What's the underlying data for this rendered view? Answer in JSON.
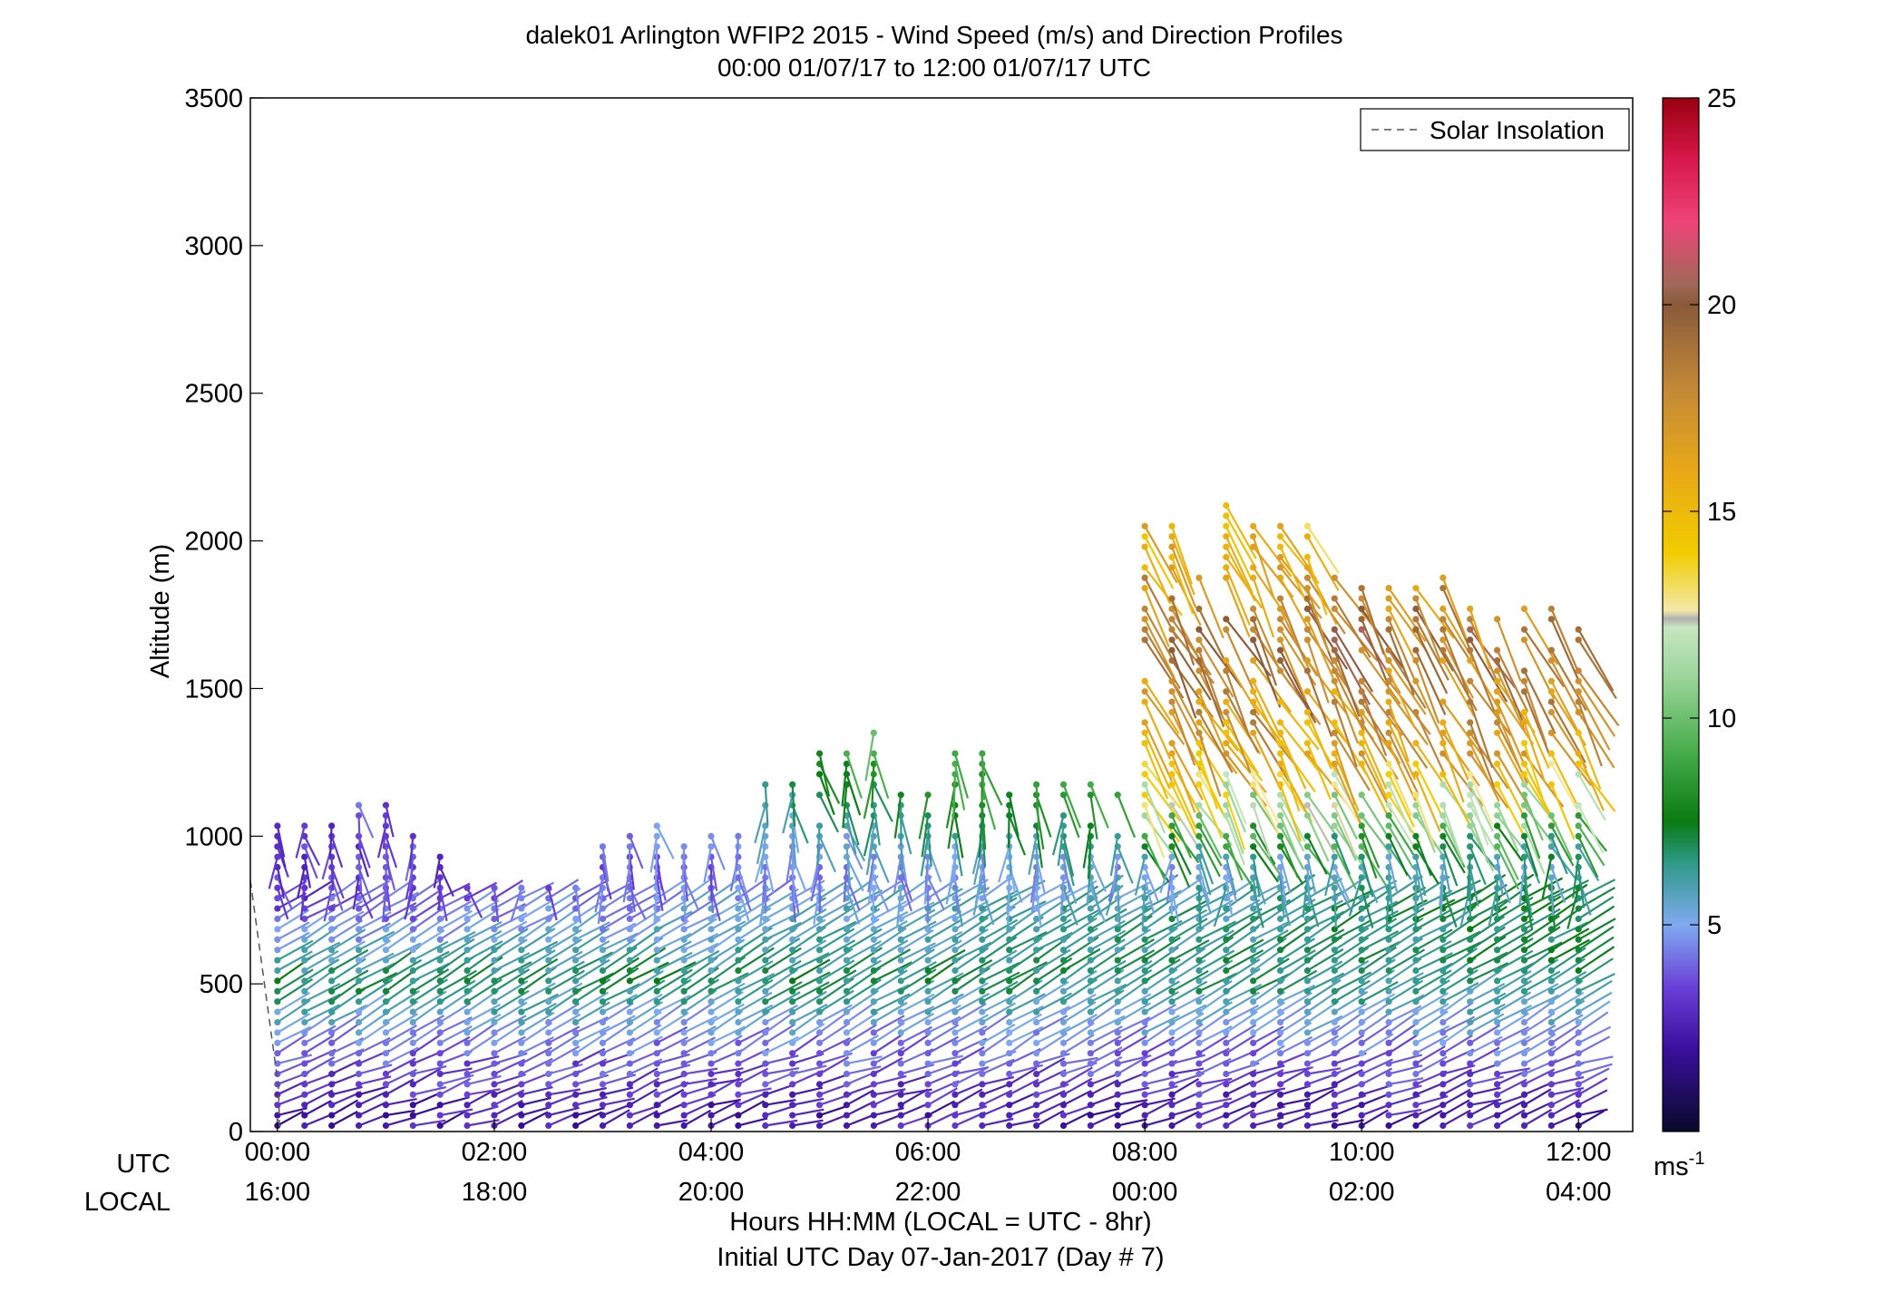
{
  "chart_data": {
    "type": "scatter",
    "title": "dalek01 Arlington WFIP2 2015 - Wind Speed (m/s) and Direction Profiles",
    "subtitle": "00:00 01/07/17 to 12:00 01/07/17  UTC",
    "ylabel": "Altitude (m)",
    "xlabel": "Hours HH:MM  (LOCAL = UTC - 8hr)",
    "xlabel2": "Initial UTC Day 07-Jan-2017 (Day # 7)",
    "ylim": [
      0,
      3500
    ],
    "xlim_hours": [
      -0.25,
      12.5
    ],
    "y_ticks": [
      "0",
      "500",
      "1000",
      "1500",
      "2000",
      "2500",
      "3000",
      "3500"
    ],
    "x_tick_hours": [
      0,
      2,
      4,
      6,
      8,
      10,
      12
    ],
    "utc_row_label": "UTC",
    "local_row_label": "LOCAL",
    "utc_ticks": [
      "00:00",
      "02:00",
      "04:00",
      "06:00",
      "08:00",
      "10:00",
      "12:00"
    ],
    "local_ticks": [
      "16:00",
      "18:00",
      "20:00",
      "22:00",
      "00:00",
      "02:00",
      "04:00"
    ],
    "legend": {
      "entry": "Solar Insolation",
      "style": "dashed gray",
      "position": "top-right"
    },
    "colorbar": {
      "label": "ms",
      "label_sup": "-1",
      "ticks": [
        "5",
        "10",
        "15",
        "20",
        "25"
      ],
      "tick_values": [
        5,
        10,
        15,
        20,
        25
      ],
      "range": [
        0,
        25
      ],
      "colormap": [
        {
          "v": 0,
          "c": "#0a0a2a"
        },
        {
          "v": 2,
          "c": "#3a0f9e"
        },
        {
          "v": 3.5,
          "c": "#6a40d8"
        },
        {
          "v": 5,
          "c": "#7faaf0"
        },
        {
          "v": 6.5,
          "c": "#2e9a88"
        },
        {
          "v": 7.5,
          "c": "#0a7a12"
        },
        {
          "v": 9,
          "c": "#3fa844"
        },
        {
          "v": 11,
          "c": "#9bd59a"
        },
        {
          "v": 12.2,
          "c": "#c8e6c0"
        },
        {
          "v": 12.4,
          "c": "#b0b0b0"
        },
        {
          "v": 12.6,
          "c": "#f3e9a8"
        },
        {
          "v": 14,
          "c": "#f2cc00"
        },
        {
          "v": 16,
          "c": "#e8a818"
        },
        {
          "v": 18,
          "c": "#c28838"
        },
        {
          "v": 20,
          "c": "#8a5a3a"
        },
        {
          "v": 20.5,
          "c": "#a06858"
        },
        {
          "v": 22,
          "c": "#ee4478"
        },
        {
          "v": 23.5,
          "c": "#d8184c"
        },
        {
          "v": 25,
          "c": "#9a0010"
        }
      ]
    },
    "profile_times_hours": [
      0,
      0.25,
      0.5,
      0.75,
      1,
      1.25,
      1.5,
      1.75,
      2,
      2.25,
      2.5,
      2.75,
      3,
      3.25,
      3.5,
      3.75,
      4,
      4.25,
      4.5,
      4.75,
      5,
      5.25,
      5.5,
      5.75,
      6,
      6.25,
      6.5,
      6.75,
      7,
      7.25,
      7.5,
      7.75,
      8,
      8.25,
      8.5,
      8.75,
      9,
      9.25,
      9.5,
      9.75,
      10,
      10.25,
      10.5,
      10.75,
      11,
      11.25,
      11.5,
      11.75,
      12
    ],
    "layer_top_altitude_m": [
      1050,
      1050,
      1050,
      1130,
      1130,
      1050,
      950,
      850,
      840,
      830,
      840,
      850,
      980,
      1000,
      1050,
      980,
      1020,
      1000,
      1200,
      1200,
      1280,
      1280,
      1400,
      1300,
      1200,
      1280,
      1280,
      1200,
      1200,
      1200,
      1200,
      1200,
      2050,
      2050,
      1900,
      2150,
      2050,
      2080,
      2050,
      1900,
      1850,
      1850,
      1850,
      1900,
      1800,
      1750,
      1800,
      1780,
      1700
    ],
    "speed_by_altitude_early_m_s": [
      {
        "altitude_m": 50,
        "speed": 2.5
      },
      {
        "altitude_m": 200,
        "speed": 3.5
      },
      {
        "altitude_m": 350,
        "speed": 5.0
      },
      {
        "altitude_m": 500,
        "speed": 7.0
      },
      {
        "altitude_m": 700,
        "speed": 4.0
      },
      {
        "altitude_m": 900,
        "speed": 3.0
      }
    ],
    "speed_by_altitude_late_m_s": [
      {
        "altitude_m": 50,
        "speed": 2.5
      },
      {
        "altitude_m": 300,
        "speed": 4.5
      },
      {
        "altitude_m": 500,
        "speed": 6.5
      },
      {
        "altitude_m": 750,
        "speed": 7.5
      },
      {
        "altitude_m": 900,
        "speed": 6.0
      },
      {
        "altitude_m": 1300,
        "speed": 16.0
      },
      {
        "altitude_m": 1700,
        "speed": 19.0
      },
      {
        "altitude_m": 2000,
        "speed": 15.0
      }
    ]
  }
}
